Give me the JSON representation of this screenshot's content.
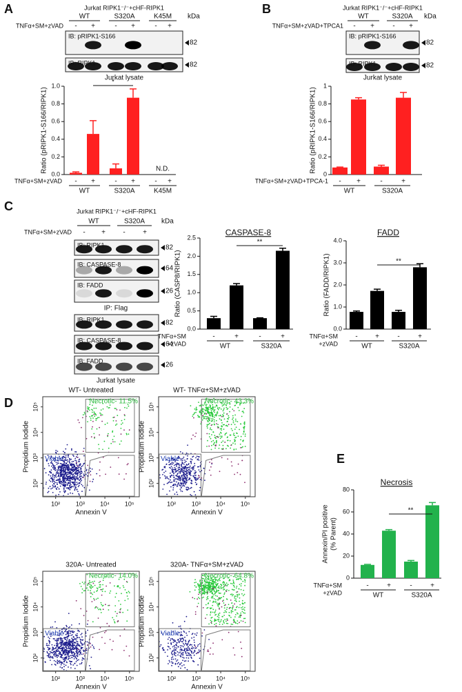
{
  "panel_labels": [
    "A",
    "B",
    "C",
    "D",
    "E"
  ],
  "blots": [
    {
      "header": "Jurkat RIPK1⁻/⁻+cHF-RIPK1",
      "groups": [
        "WT",
        "S320A",
        "K45M"
      ],
      "unit": "kDa",
      "condition": "TNFα+SM+zVAD",
      "signs": [
        "-",
        "+",
        "-",
        "+",
        "-",
        "+"
      ],
      "rows": [
        {
          "label": "IB: pRIPK1-S166",
          "mw": "82"
        },
        {
          "label": "IB: RIPK1",
          "mw": "82"
        }
      ],
      "captions": [
        "Jurkat lysate"
      ]
    },
    {
      "header": "Jurkat RIPK1⁻/⁻+cHF-RIPK1",
      "groups": [
        "WT",
        "S320A"
      ],
      "unit": "kDa",
      "condition": "TNFα+SM+zVAD+TPCA1",
      "signs": [
        "-",
        "+",
        "-",
        "+"
      ],
      "rows": [
        {
          "label": "IB: pRIPK1-S166",
          "mw": "82"
        },
        {
          "label": "IB: RIPK1",
          "mw": "82"
        }
      ],
      "captions": [
        "Jurkat lysate"
      ]
    },
    {
      "header": "Jurkat RIPK1⁻/⁻+cHF-RIPK1",
      "groups": [
        "WT",
        "S320A"
      ],
      "unit": "kDa",
      "condition": "TNFα+SM+zVAD",
      "signs": [
        "-",
        "+",
        "-",
        "+"
      ],
      "rows": [
        {
          "label": "IB: RIPK1",
          "mw": "82"
        },
        {
          "label": "IB: CASPASE-8",
          "mw": "64"
        },
        {
          "label": "IB: FADD",
          "mw": "26"
        },
        {
          "label": "IB: RIPK1",
          "mw": "82"
        },
        {
          "label": "IB: CASPASE-8",
          "mw": "64"
        },
        {
          "label": "IB: FADD",
          "mw": "26"
        }
      ],
      "captions": [
        "IP: Flag",
        "Jurkat lysate"
      ]
    }
  ],
  "chart_data": [
    {
      "type": "bar",
      "y_label": [
        "Ratio (pRIPK1-S166/RIPK1)"
      ],
      "condition": [
        "TNFα+SM+zVAD"
      ],
      "categories": [
        "-",
        "+",
        "-",
        "+",
        "-",
        "+"
      ],
      "groups": [
        "WT",
        "S320A",
        "K45M"
      ],
      "values": [
        0.02,
        0.46,
        0.07,
        0.87,
        null,
        null
      ],
      "errors": [
        0.01,
        0.15,
        0.05,
        0.1,
        null,
        null
      ],
      "color": "#ff2020",
      "ylim": [
        0,
        1
      ],
      "yticks": [
        {
          "value": 0,
          "label": "0.0"
        },
        0.2,
        0.4,
        0.6,
        0.8,
        {
          "value": 1,
          "label": "1.0"
        }
      ],
      "significance": "*",
      "note": "N.D."
    },
    {
      "type": "bar",
      "y_label": [
        "Ratio (pRIPK1-S166/RIPK1)"
      ],
      "condition": [
        "TNFα+SM+zVAD+TPCA-1"
      ],
      "categories": [
        "-",
        "+",
        "-",
        "+"
      ],
      "groups": [
        "WT",
        "S320A"
      ],
      "values": [
        0.08,
        0.85,
        0.09,
        0.87
      ],
      "errors": [
        0.005,
        0.02,
        0.015,
        0.06
      ],
      "color": "#ff2020",
      "ylim": [
        0,
        1
      ],
      "yticks": [
        0,
        0.2,
        0.4,
        0.6,
        0.8,
        1
      ]
    },
    {
      "type": "bar",
      "title": "CASPASE-8",
      "y_label": [
        "Ratio (CASP8/RIPK1)"
      ],
      "condition": [
        "TNFα+SM",
        "+zVAD"
      ],
      "categories": [
        "-",
        "+",
        "-",
        "+"
      ],
      "groups": [
        "WT",
        "S320A"
      ],
      "values": [
        0.3,
        1.2,
        0.3,
        2.15
      ],
      "errors": [
        0.05,
        0.05,
        0.01,
        0.07
      ],
      "color": "#000000",
      "ylim": [
        0,
        2.5
      ],
      "yticks": [
        {
          "value": 0,
          "label": "0.0"
        },
        0.5,
        {
          "value": 1,
          "label": "1.0"
        },
        1.5,
        {
          "value": 2,
          "label": "2.0"
        },
        2.5
      ],
      "significance": "**"
    },
    {
      "type": "bar",
      "title": "FADD",
      "y_label": [
        "Ratio (FADD/RIPK1)"
      ],
      "condition": [
        "TNFα+SM",
        "+zVAD"
      ],
      "categories": [
        "-",
        "+",
        "-",
        "+"
      ],
      "groups": [
        "WT",
        "S320A"
      ],
      "values": [
        0.78,
        1.73,
        0.78,
        2.8
      ],
      "errors": [
        0.04,
        0.08,
        0.07,
        0.16
      ],
      "color": "#000000",
      "ylim": [
        0,
        4
      ],
      "yticks": [
        {
          "value": 0,
          "label": "0.0"
        },
        {
          "value": 1,
          "label": "1.0"
        },
        {
          "value": 2,
          "label": "2.0"
        },
        {
          "value": 3,
          "label": "3.0"
        },
        {
          "value": 4,
          "label": "4.0"
        }
      ],
      "significance": "**"
    },
    {
      "type": "bar",
      "title": "Necrosis",
      "y_label": [
        "Annexin/PI positive",
        "(% Parent)"
      ],
      "condition": [
        "TNFα+SM",
        "+zVAD"
      ],
      "categories": [
        "-",
        "+",
        "-",
        "+"
      ],
      "groups": [
        "WT",
        "S320A"
      ],
      "values": [
        12,
        43,
        15,
        66
      ],
      "errors": [
        0.5,
        1,
        1,
        2.5
      ],
      "color": "#22b24c",
      "ylim": [
        0,
        80
      ],
      "yticks": [
        0,
        20,
        40,
        60,
        80
      ],
      "significance": "**"
    }
  ],
  "flow": {
    "x_label": "Annexin V",
    "y_label": "Propidium Iodide",
    "gate_viable": "Viable",
    "log": true,
    "xlim": [
      30,
      250000
    ],
    "ylim": [
      30,
      250000
    ],
    "ticks": [
      {
        "value": 100,
        "label": "10²"
      },
      {
        "value": 1000,
        "label": "10³"
      },
      {
        "value": 10000,
        "label": "10⁴"
      },
      {
        "value": 100000,
        "label": "10⁵"
      }
    ],
    "plots": [
      {
        "title": "WT- Untreated",
        "necrotic": "Necrotic- 11.5%"
      },
      {
        "title": "WT- TNFα+SM+zVAD",
        "necrotic": "Necrotic- 43.3%"
      },
      {
        "title": "320A- Untreated",
        "necrotic": "Necrotic- 14.0%"
      },
      {
        "title": "320A- TNFα+SM+zVAD",
        "necrotic": "Necrotic- 64.8%"
      }
    ]
  }
}
